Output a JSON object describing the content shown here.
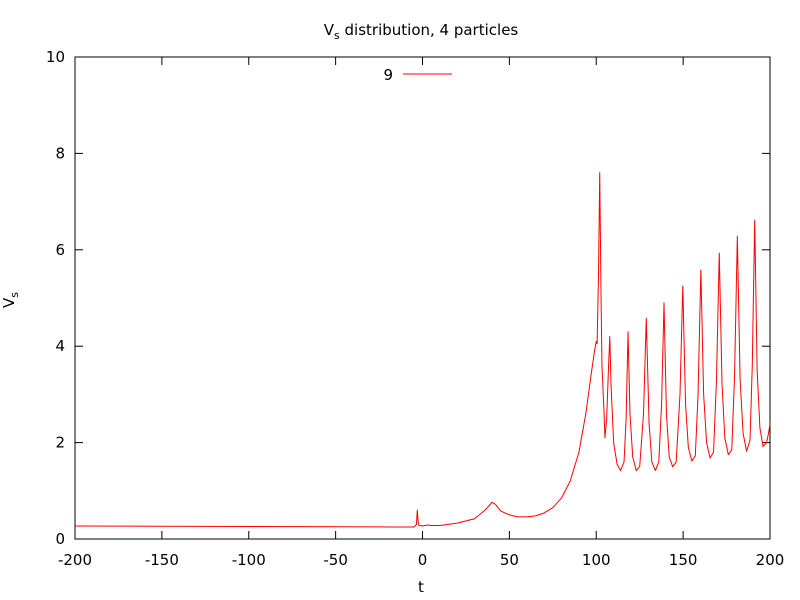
{
  "chart_data": {
    "type": "line",
    "title": "V",
    "title_sub": "s",
    "title_rest": " distribution, 4 particles",
    "xlabel": "t",
    "ylabel": "V",
    "ylabel_sub": "s",
    "xlim": [
      -200,
      200
    ],
    "ylim": [
      0,
      10
    ],
    "xticks": [
      -200,
      -150,
      -100,
      -50,
      0,
      50,
      100,
      150,
      200
    ],
    "yticks": [
      0,
      2,
      4,
      6,
      8,
      10
    ],
    "grid": false,
    "legend": {
      "position": "top-center",
      "entries": [
        {
          "label": "9",
          "color": "#ff0000"
        }
      ]
    },
    "series": [
      {
        "name": "9",
        "color": "#ff0000",
        "points": [
          [
            -200,
            0.27
          ],
          [
            -150,
            0.265
          ],
          [
            -100,
            0.26
          ],
          [
            -50,
            0.255
          ],
          [
            -20,
            0.25
          ],
          [
            -5,
            0.25
          ],
          [
            -3.5,
            0.3
          ],
          [
            -3,
            0.6
          ],
          [
            -2.5,
            0.35
          ],
          [
            -2,
            0.28
          ],
          [
            0,
            0.27
          ],
          [
            3,
            0.29
          ],
          [
            5,
            0.28
          ],
          [
            10,
            0.28
          ],
          [
            20,
            0.33
          ],
          [
            30,
            0.42
          ],
          [
            36,
            0.6
          ],
          [
            40,
            0.76
          ],
          [
            42,
            0.72
          ],
          [
            45,
            0.58
          ],
          [
            50,
            0.5
          ],
          [
            55,
            0.46
          ],
          [
            60,
            0.46
          ],
          [
            65,
            0.48
          ],
          [
            70,
            0.54
          ],
          [
            75,
            0.65
          ],
          [
            80,
            0.85
          ],
          [
            85,
            1.2
          ],
          [
            90,
            1.8
          ],
          [
            94,
            2.6
          ],
          [
            97,
            3.4
          ],
          [
            99,
            3.9
          ],
          [
            100,
            4.1
          ],
          [
            100.5,
            4.05
          ],
          [
            101.3,
            5.5
          ],
          [
            102,
            7.6
          ],
          [
            102.7,
            5.2
          ],
          [
            103.3,
            3.6
          ],
          [
            104.5,
            2.6
          ],
          [
            105,
            2.1
          ],
          [
            106,
            2.5
          ],
          [
            107,
            3.5
          ],
          [
            107.8,
            4.2
          ],
          [
            108.5,
            3.2
          ],
          [
            110,
            2.0
          ],
          [
            112,
            1.55
          ],
          [
            114,
            1.42
          ],
          [
            116,
            1.6
          ],
          [
            117.2,
            2.5
          ],
          [
            118.3,
            4.3
          ],
          [
            119.4,
            2.6
          ],
          [
            121,
            1.7
          ],
          [
            123,
            1.42
          ],
          [
            125,
            1.5
          ],
          [
            127.2,
            2.6
          ],
          [
            128.8,
            4.58
          ],
          [
            130.4,
            2.4
          ],
          [
            132,
            1.6
          ],
          [
            134,
            1.42
          ],
          [
            136,
            1.6
          ],
          [
            137.6,
            2.8
          ],
          [
            139,
            4.9
          ],
          [
            140.4,
            2.6
          ],
          [
            142,
            1.7
          ],
          [
            144,
            1.5
          ],
          [
            146,
            1.6
          ],
          [
            148.2,
            3.0
          ],
          [
            149.8,
            5.25
          ],
          [
            151.4,
            2.8
          ],
          [
            153,
            1.9
          ],
          [
            155,
            1.62
          ],
          [
            157,
            1.72
          ],
          [
            158.6,
            3.0
          ],
          [
            160.2,
            5.58
          ],
          [
            161.8,
            3.0
          ],
          [
            163.5,
            2.0
          ],
          [
            165.5,
            1.68
          ],
          [
            167.5,
            1.8
          ],
          [
            169.2,
            3.3
          ],
          [
            170.8,
            5.93
          ],
          [
            172.4,
            3.2
          ],
          [
            174,
            2.1
          ],
          [
            176,
            1.75
          ],
          [
            178,
            1.85
          ],
          [
            179.6,
            3.4
          ],
          [
            181.2,
            6.28
          ],
          [
            182.8,
            3.3
          ],
          [
            184.5,
            2.2
          ],
          [
            186.5,
            1.82
          ],
          [
            188.5,
            2.05
          ],
          [
            189.8,
            3.6
          ],
          [
            191.2,
            6.62
          ],
          [
            192.6,
            3.5
          ],
          [
            194.2,
            2.3
          ],
          [
            196,
            1.92
          ],
          [
            198,
            2.0
          ],
          [
            199.2,
            2.2
          ],
          [
            200,
            2.4
          ]
        ]
      }
    ]
  }
}
